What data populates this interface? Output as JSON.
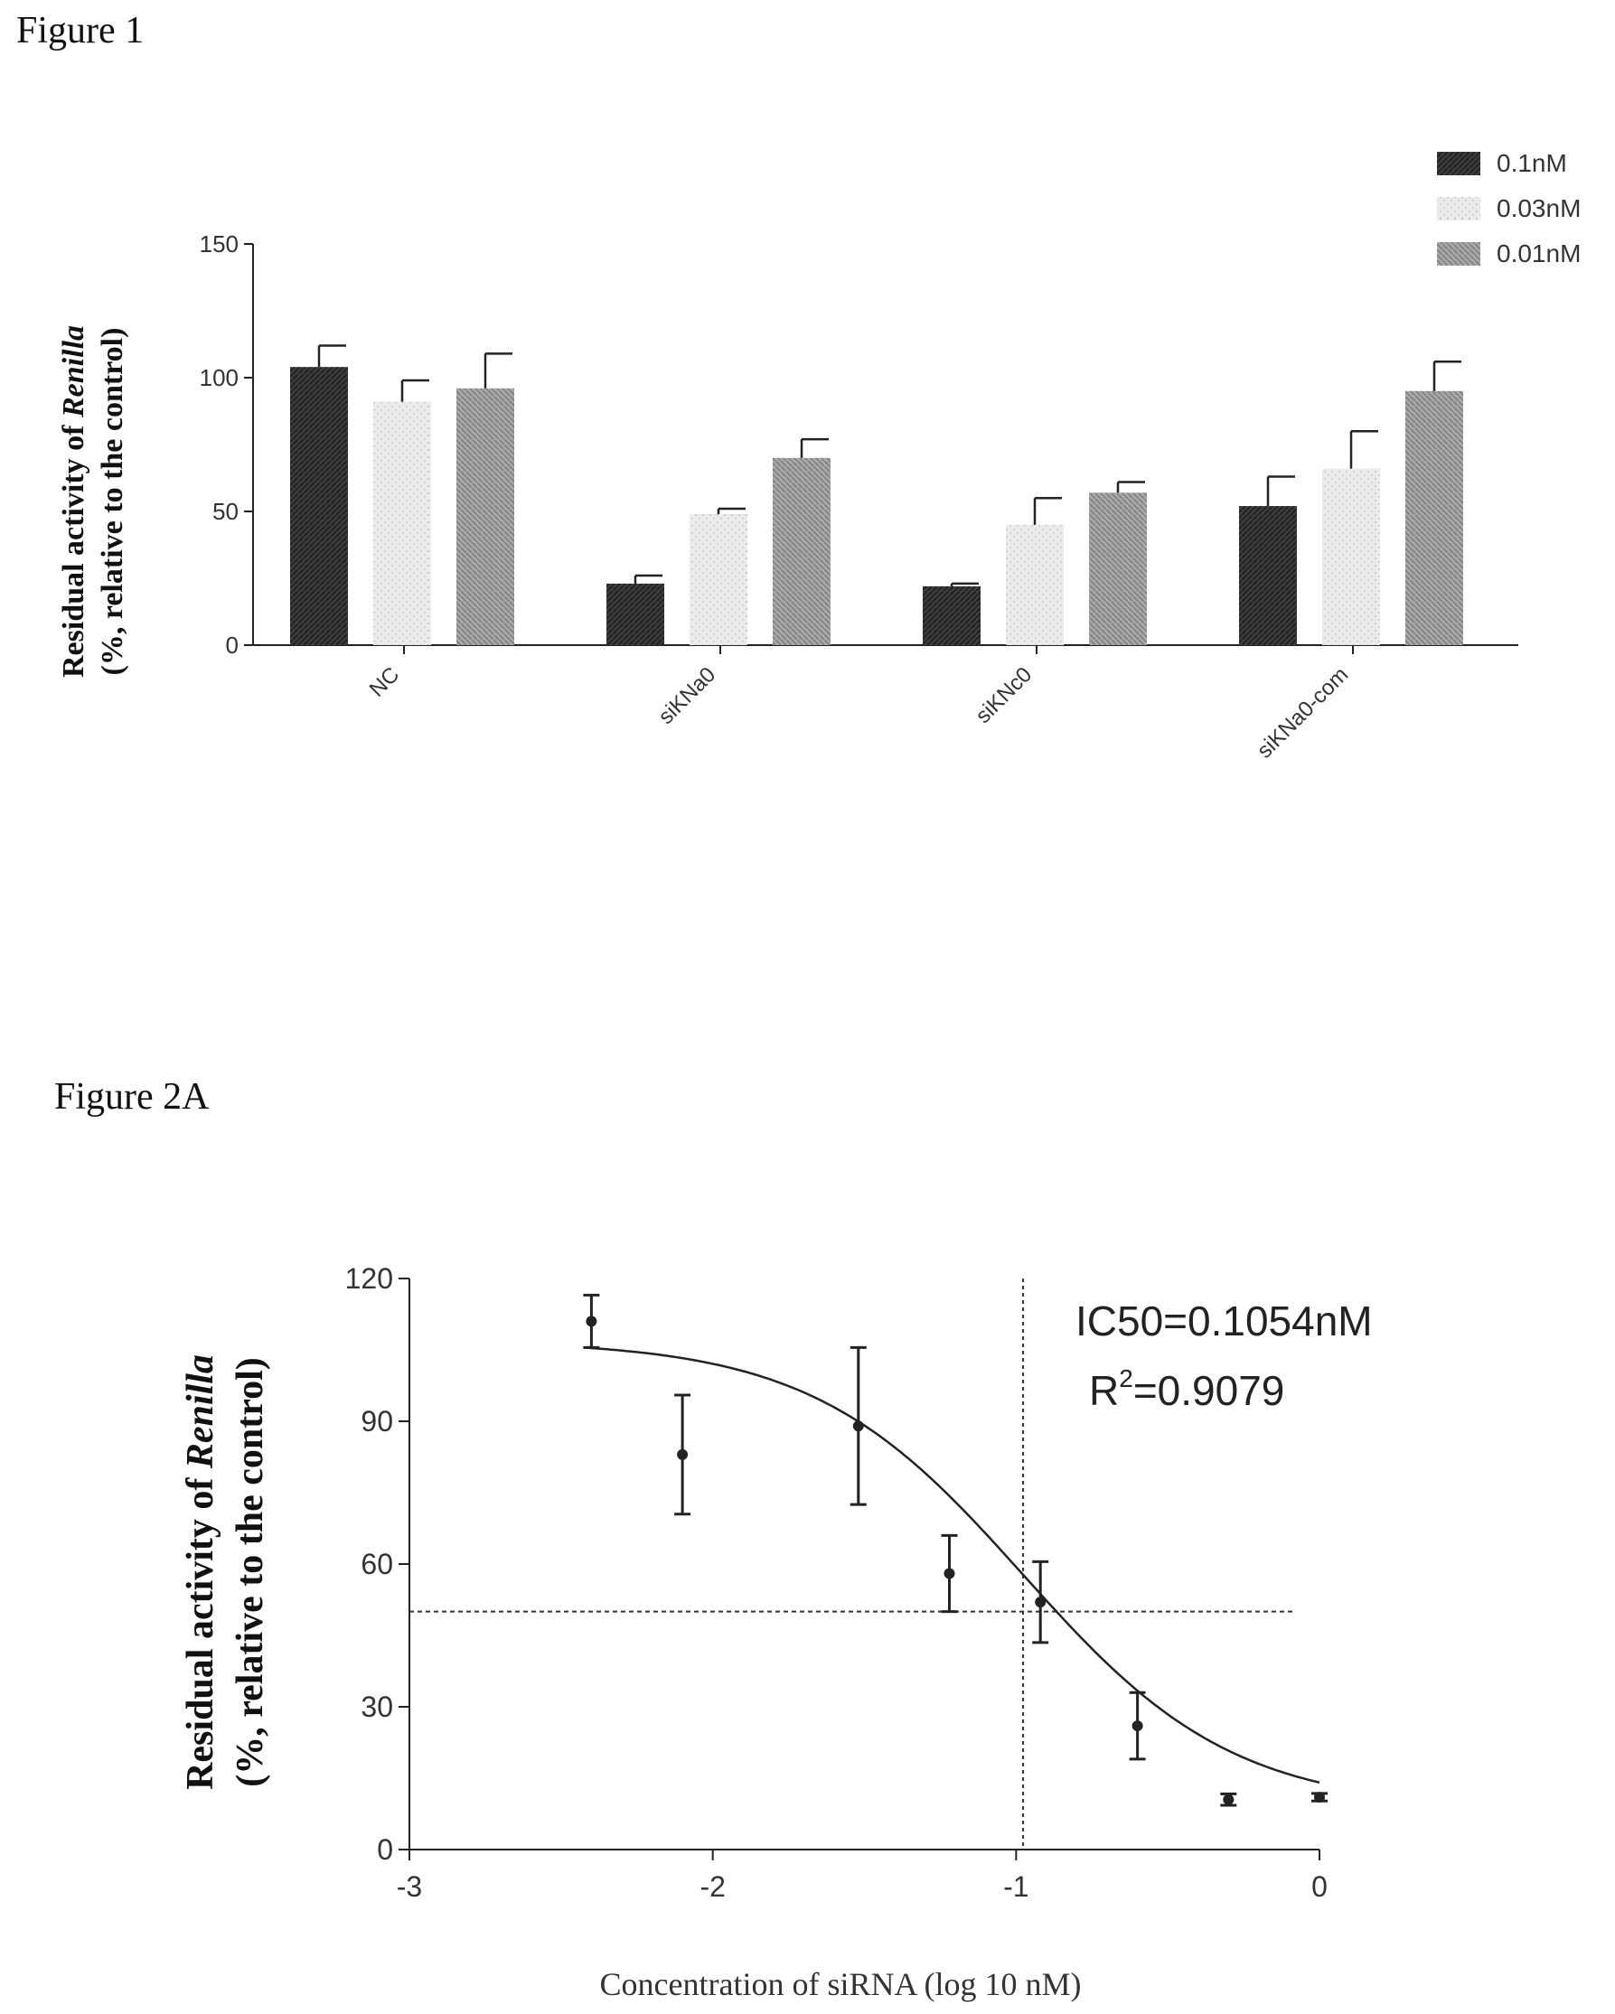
{
  "figures": {
    "fig1_title": "Figure 1",
    "fig2_title": "Figure 2A"
  },
  "chart_data": [
    {
      "type": "bar",
      "ylabel_line1": "Residual activity of Renilla",
      "ylabel_line1_plain": "Residual activity of ",
      "ylabel_line1_italic": "Renilla",
      "ylabel_line2": "(%, relative to the control)",
      "ylim": [
        0,
        150
      ],
      "yticks": [
        "0",
        "50",
        "100",
        "150"
      ],
      "categories": [
        "NC",
        "siKNa0",
        "siKNc0",
        "siKNa0-com"
      ],
      "legend_position": "top-right",
      "series": [
        {
          "name": "0.1nM",
          "values": [
            104,
            23,
            22,
            52
          ],
          "errors": [
            8,
            3,
            1,
            11
          ],
          "color": "#3a3a3a"
        },
        {
          "name": "0.03nM",
          "values": [
            91,
            49,
            45,
            66
          ],
          "errors": [
            8,
            2,
            10,
            14
          ],
          "color": "#e6e6e6"
        },
        {
          "name": "0.01nM",
          "values": [
            96,
            70,
            57,
            95
          ],
          "errors": [
            13,
            7,
            4,
            11
          ],
          "color": "#9a9a9a"
        }
      ]
    },
    {
      "type": "scatter",
      "xlabel": "Concentration of siRNA (log 10 nM)",
      "ylabel_line1": "Residual activity of Renilla",
      "ylabel_line1_plain": "Residual activity of ",
      "ylabel_line1_italic": "Renilla",
      "ylabel_line2": "(%, relative to the control)",
      "xlim": [
        -3,
        0
      ],
      "ylim": [
        0,
        120
      ],
      "xticks": [
        "-3",
        "-2",
        "-1",
        "0"
      ],
      "yticks": [
        "0",
        "30",
        "60",
        "90",
        "120"
      ],
      "annotations": [
        "IC50=0.1054nM",
        "R²=0.9079"
      ],
      "annotation_ic50": "IC50=0.1054nM",
      "annotation_r2_prefix": "R",
      "annotation_r2_sup": "2",
      "annotation_r2_value": "=0.9079",
      "reference_lines": {
        "x": -0.977,
        "y": 50
      },
      "points": [
        {
          "x": -2.4,
          "y": 111,
          "err": 5.5
        },
        {
          "x": -2.1,
          "y": 83,
          "err": 12.5
        },
        {
          "x": -1.52,
          "y": 89,
          "err": 16.5
        },
        {
          "x": -1.22,
          "y": 58,
          "err": 8
        },
        {
          "x": -0.92,
          "y": 52,
          "err": 8.5
        },
        {
          "x": -0.6,
          "y": 26,
          "err": 7
        },
        {
          "x": -0.3,
          "y": 10.5,
          "err": 1.2
        },
        {
          "x": 0,
          "y": 11,
          "err": 0.8
        }
      ],
      "fit_curve": {
        "type": "4PL",
        "bottom": 8.5,
        "top": 107,
        "logIC50": -0.977,
        "hill": 1.25
      }
    }
  ]
}
